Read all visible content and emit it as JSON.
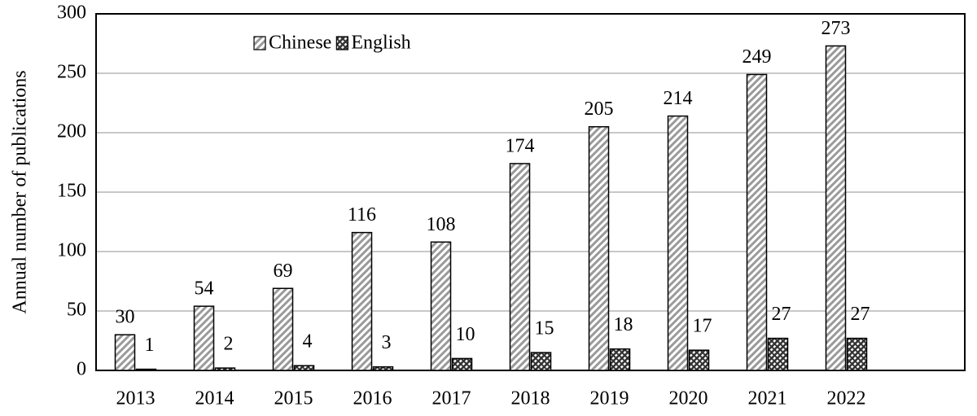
{
  "chart_data": {
    "type": "bar",
    "y_label": "Annual number of publications",
    "categories": [
      "2013",
      "2014",
      "2015",
      "2016",
      "2017",
      "2018",
      "2019",
      "2020",
      "2021",
      "2022",
      null
    ],
    "series": [
      {
        "name": "Chinese",
        "color": "#999999",
        "values": [
          30,
          54,
          69,
          116,
          108,
          174,
          205,
          214,
          249,
          273,
          null
        ]
      },
      {
        "name": "English",
        "color": "#333333",
        "values": [
          1,
          2,
          4,
          3,
          10,
          15,
          18,
          17,
          27,
          27,
          null
        ]
      }
    ],
    "ylim": [
      0,
      300
    ],
    "yticks": [
      0,
      50,
      100,
      150,
      200,
      250,
      300
    ],
    "grid": true
  }
}
